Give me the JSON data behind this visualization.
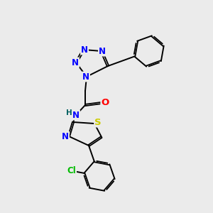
{
  "background_color": "#ebebeb",
  "bond_color": "#000000",
  "atom_colors": {
    "N": "#0000ff",
    "O": "#ff0000",
    "S": "#cccc00",
    "Cl": "#00bb00",
    "H": "#006060",
    "C": "#000000"
  },
  "font_size": 8.5,
  "figsize": [
    3.0,
    3.0
  ],
  "dpi": 100
}
